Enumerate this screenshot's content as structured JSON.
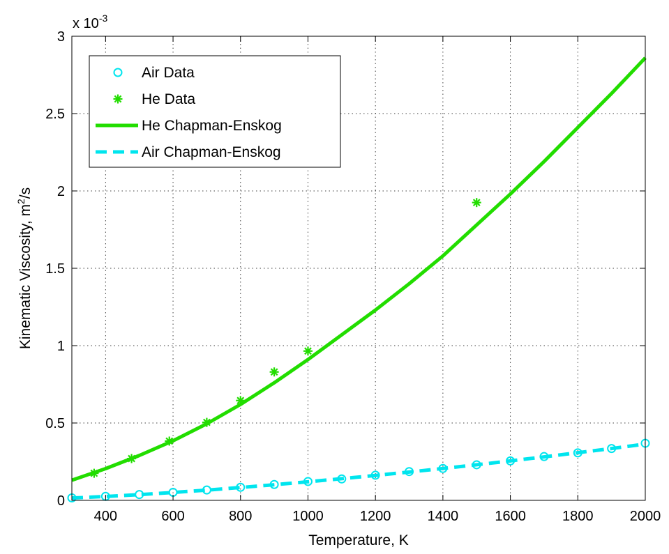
{
  "chart_data": {
    "type": "line",
    "title": "",
    "xlabel": "Temperature, K",
    "ylabel_main": "Kinematic Viscosity, m",
    "ylabel_sup": "2",
    "ylabel_tail": "/s",
    "y_exponent_base": "x 10",
    "y_exponent_power": "-3",
    "xlim": [
      300,
      2000
    ],
    "ylim": [
      0,
      3
    ],
    "xticks": [
      400,
      600,
      800,
      1000,
      1200,
      1400,
      1600,
      1800,
      2000
    ],
    "yticks": [
      0,
      0.5,
      1,
      1.5,
      2,
      2.5,
      3
    ],
    "xtick_labels": [
      "400",
      "600",
      "800",
      "1000",
      "1200",
      "1400",
      "1600",
      "1800",
      "2000"
    ],
    "ytick_labels": [
      "0",
      "0.5",
      "1",
      "1.5",
      "2",
      "2.5",
      "3"
    ],
    "grid": true,
    "legend_position": "top-left",
    "series": [
      {
        "name": "Air Data",
        "kind": "markers",
        "marker": "circle",
        "color": "#00e5ee",
        "x": [
          300,
          400,
          500,
          600,
          700,
          800,
          900,
          1000,
          1100,
          1200,
          1300,
          1400,
          1500,
          1600,
          1700,
          1800,
          1900,
          2000
        ],
        "y": [
          0.0159,
          0.0259,
          0.0377,
          0.0519,
          0.067,
          0.0846,
          0.1025,
          0.1219,
          0.1383,
          0.1625,
          0.186,
          0.206,
          0.23,
          0.255,
          0.283,
          0.307,
          0.335,
          0.369
        ]
      },
      {
        "name": "He Data",
        "kind": "markers",
        "marker": "asterisk",
        "color": "#22dd00",
        "x": [
          366,
          477,
          589,
          700,
          800,
          900,
          1000,
          1500
        ],
        "y": [
          0.175,
          0.27,
          0.383,
          0.504,
          0.645,
          0.83,
          0.965,
          1.925
        ]
      },
      {
        "name": "He Chapman-Enskog",
        "kind": "line",
        "style": "solid",
        "color": "#22dd00",
        "x": [
          300,
          400,
          500,
          600,
          700,
          800,
          900,
          1000,
          1100,
          1200,
          1300,
          1400,
          1500,
          1600,
          1700,
          1800,
          1900,
          2000
        ],
        "y": [
          0.13,
          0.205,
          0.29,
          0.385,
          0.495,
          0.62,
          0.76,
          0.91,
          1.07,
          1.23,
          1.4,
          1.58,
          1.78,
          1.98,
          2.19,
          2.41,
          2.63,
          2.86
        ]
      },
      {
        "name": "Air Chapman-Enskog",
        "kind": "line",
        "style": "dashed",
        "color": "#00e5ee",
        "x": [
          300,
          400,
          500,
          600,
          700,
          800,
          900,
          1000,
          1100,
          1200,
          1300,
          1400,
          1500,
          1600,
          1700,
          1800,
          1900,
          2000
        ],
        "y": [
          0.015,
          0.025,
          0.037,
          0.051,
          0.066,
          0.083,
          0.101,
          0.12,
          0.14,
          0.161,
          0.183,
          0.206,
          0.23,
          0.255,
          0.281,
          0.308,
          0.335,
          0.364
        ]
      }
    ]
  }
}
